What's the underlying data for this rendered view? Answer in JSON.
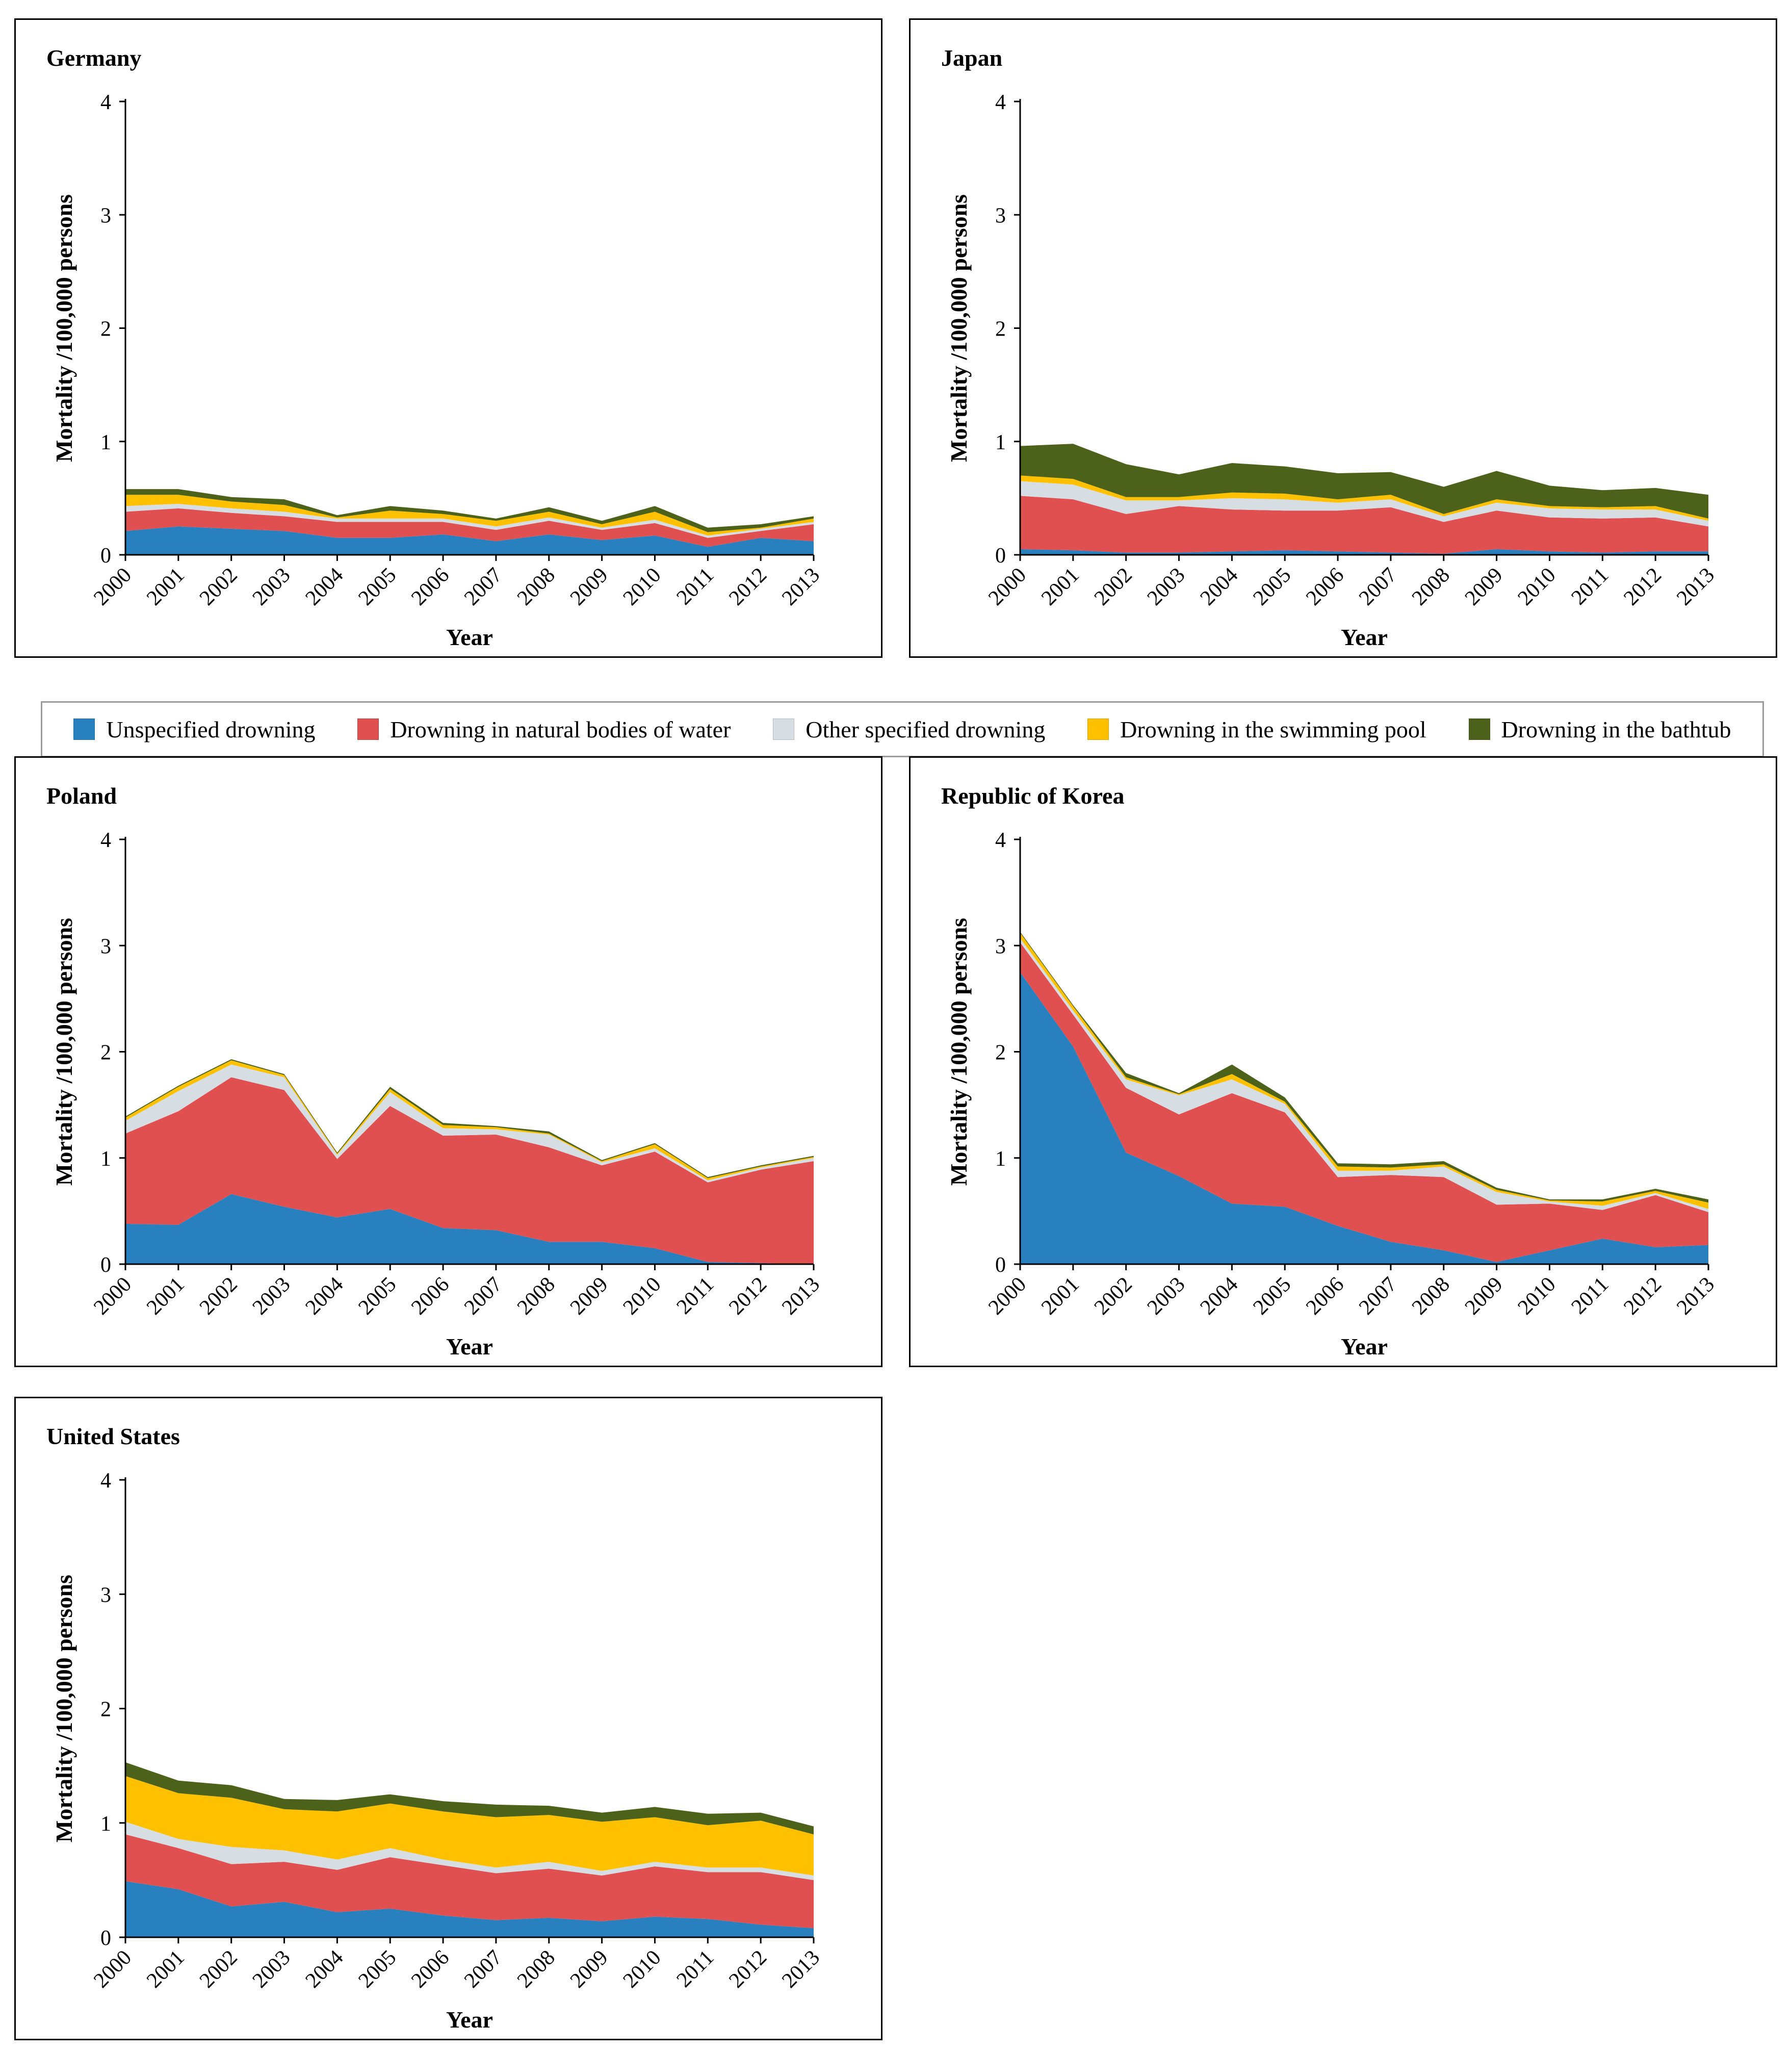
{
  "legend": {
    "items": [
      {
        "label": "Unspecified drowning",
        "color": "#2980bf"
      },
      {
        "label": "Drowning in natural bodies of water",
        "color": "#e05050"
      },
      {
        "label": "Other specified drowning",
        "color": "#d6dde3"
      },
      {
        "label": "Drowning in the swimming pool",
        "color": "#ffc000"
      },
      {
        "label": "Drowning in the bathtub",
        "color": "#4c6119"
      }
    ]
  },
  "chart_data": [
    {
      "type": "area",
      "title": "Germany",
      "xlabel": "Year",
      "ylabel": "Mortality /100,000 persons",
      "ylim": [
        0,
        4
      ],
      "yticks": [
        0,
        1,
        2,
        3,
        4
      ],
      "categories": [
        "2000",
        "2001",
        "2002",
        "2003",
        "2004",
        "2005",
        "2006",
        "2007",
        "2008",
        "2009",
        "2010",
        "2011",
        "2012",
        "2013"
      ],
      "series": [
        {
          "name": "Unspecified drowning",
          "values": [
            0.21,
            0.25,
            0.23,
            0.21,
            0.15,
            0.15,
            0.18,
            0.12,
            0.18,
            0.13,
            0.17,
            0.07,
            0.15,
            0.12
          ]
        },
        {
          "name": "Drowning in natural bodies of water",
          "values": [
            0.17,
            0.16,
            0.14,
            0.13,
            0.14,
            0.14,
            0.11,
            0.1,
            0.12,
            0.09,
            0.11,
            0.08,
            0.06,
            0.15
          ]
        },
        {
          "name": "Other specified drowning",
          "values": [
            0.05,
            0.04,
            0.04,
            0.04,
            0.03,
            0.03,
            0.03,
            0.03,
            0.03,
            0.02,
            0.03,
            0.02,
            0.02,
            0.02
          ]
        },
        {
          "name": "Drowning in the swimming pool",
          "values": [
            0.1,
            0.08,
            0.06,
            0.06,
            0.01,
            0.07,
            0.04,
            0.05,
            0.05,
            0.03,
            0.07,
            0.03,
            0.01,
            0.03
          ]
        },
        {
          "name": "Drowning in the bathtub",
          "values": [
            0.05,
            0.05,
            0.04,
            0.05,
            0.02,
            0.04,
            0.03,
            0.02,
            0.04,
            0.03,
            0.05,
            0.04,
            0.03,
            0.02
          ]
        }
      ]
    },
    {
      "type": "area",
      "title": "Japan",
      "xlabel": "Year",
      "ylabel": "Mortality /100,000 persons",
      "ylim": [
        0,
        4
      ],
      "yticks": [
        0,
        1,
        2,
        3,
        4
      ],
      "categories": [
        "2000",
        "2001",
        "2002",
        "2003",
        "2004",
        "2005",
        "2006",
        "2007",
        "2008",
        "2009",
        "2010",
        "2011",
        "2012",
        "2013"
      ],
      "series": [
        {
          "name": "Unspecified drowning",
          "values": [
            0.05,
            0.04,
            0.02,
            0.02,
            0.03,
            0.04,
            0.03,
            0.02,
            0.01,
            0.05,
            0.03,
            0.02,
            0.03,
            0.03
          ]
        },
        {
          "name": "Drowning in natural bodies of water",
          "values": [
            0.47,
            0.45,
            0.34,
            0.41,
            0.37,
            0.35,
            0.36,
            0.4,
            0.28,
            0.34,
            0.3,
            0.3,
            0.3,
            0.22
          ]
        },
        {
          "name": "Other specified drowning",
          "values": [
            0.13,
            0.13,
            0.12,
            0.05,
            0.1,
            0.1,
            0.07,
            0.07,
            0.05,
            0.07,
            0.08,
            0.08,
            0.07,
            0.05
          ]
        },
        {
          "name": "Drowning in the swimming pool",
          "values": [
            0.05,
            0.05,
            0.03,
            0.03,
            0.05,
            0.05,
            0.03,
            0.04,
            0.02,
            0.03,
            0.02,
            0.02,
            0.03,
            0.02
          ]
        },
        {
          "name": "Drowning in the bathtub",
          "values": [
            0.26,
            0.31,
            0.29,
            0.2,
            0.26,
            0.24,
            0.23,
            0.2,
            0.24,
            0.25,
            0.18,
            0.15,
            0.16,
            0.21
          ]
        }
      ]
    },
    {
      "type": "area",
      "title": "Poland",
      "xlabel": "Year",
      "ylabel": "Mortality /100,000 persons",
      "ylim": [
        0,
        4
      ],
      "yticks": [
        0,
        1,
        2,
        3,
        4
      ],
      "categories": [
        "2000",
        "2001",
        "2002",
        "2003",
        "2004",
        "2005",
        "2006",
        "2007",
        "2008",
        "2009",
        "2010",
        "2011",
        "2012",
        "2013"
      ],
      "series": [
        {
          "name": "Unspecified drowning",
          "values": [
            0.38,
            0.37,
            0.66,
            0.54,
            0.44,
            0.52,
            0.34,
            0.32,
            0.21,
            0.21,
            0.15,
            0.02,
            0.01,
            0.0
          ]
        },
        {
          "name": "Drowning in natural bodies of water",
          "values": [
            0.85,
            1.07,
            1.1,
            1.1,
            0.55,
            0.97,
            0.87,
            0.9,
            0.89,
            0.72,
            0.91,
            0.75,
            0.88,
            0.97
          ]
        },
        {
          "name": "Other specified drowning",
          "values": [
            0.12,
            0.19,
            0.12,
            0.12,
            0.04,
            0.13,
            0.07,
            0.05,
            0.12,
            0.03,
            0.03,
            0.02,
            0.02,
            0.03
          ]
        },
        {
          "name": "Drowning in the swimming pool",
          "values": [
            0.03,
            0.04,
            0.04,
            0.02,
            0.01,
            0.03,
            0.03,
            0.02,
            0.01,
            0.01,
            0.04,
            0.02,
            0.01,
            0.01
          ]
        },
        {
          "name": "Drowning in the bathtub",
          "values": [
            0.01,
            0.01,
            0.01,
            0.01,
            0.01,
            0.02,
            0.02,
            0.01,
            0.02,
            0.01,
            0.01,
            0.01,
            0.01,
            0.01
          ]
        }
      ]
    },
    {
      "type": "area",
      "title": "Republic of Korea",
      "xlabel": "Year",
      "ylabel": "Mortality /100,000 persons",
      "ylim": [
        0,
        4
      ],
      "yticks": [
        0,
        1,
        2,
        3,
        4
      ],
      "categories": [
        "2000",
        "2001",
        "2002",
        "2003",
        "2004",
        "2005",
        "2006",
        "2007",
        "2008",
        "2009",
        "2010",
        "2011",
        "2012",
        "2013"
      ],
      "series": [
        {
          "name": "Unspecified drowning",
          "values": [
            2.75,
            2.05,
            1.05,
            0.83,
            0.57,
            0.54,
            0.36,
            0.21,
            0.13,
            0.02,
            0.13,
            0.24,
            0.16,
            0.18
          ]
        },
        {
          "name": "Drowning in natural bodies of water",
          "values": [
            0.28,
            0.3,
            0.61,
            0.58,
            1.04,
            0.89,
            0.46,
            0.63,
            0.69,
            0.54,
            0.44,
            0.27,
            0.49,
            0.31
          ]
        },
        {
          "name": "Other specified drowning",
          "values": [
            0.04,
            0.04,
            0.08,
            0.18,
            0.13,
            0.08,
            0.06,
            0.04,
            0.1,
            0.12,
            0.02,
            0.04,
            0.02,
            0.03
          ]
        },
        {
          "name": "Drowning in the swimming pool",
          "values": [
            0.05,
            0.04,
            0.02,
            0.01,
            0.05,
            0.02,
            0.04,
            0.03,
            0.02,
            0.02,
            0.01,
            0.04,
            0.02,
            0.06
          ]
        },
        {
          "name": "Drowning in the bathtub",
          "values": [
            0.01,
            0.01,
            0.04,
            0.01,
            0.09,
            0.04,
            0.03,
            0.03,
            0.03,
            0.02,
            0.01,
            0.02,
            0.02,
            0.03
          ]
        }
      ]
    },
    {
      "type": "area",
      "title": "United States",
      "xlabel": "Year",
      "ylabel": "Mortality /100,000 persons",
      "ylim": [
        0,
        4
      ],
      "yticks": [
        0,
        1,
        2,
        3,
        4
      ],
      "categories": [
        "2000",
        "2001",
        "2002",
        "2003",
        "2004",
        "2005",
        "2006",
        "2007",
        "2008",
        "2009",
        "2010",
        "2011",
        "2012",
        "2013"
      ],
      "series": [
        {
          "name": "Unspecified drowning",
          "values": [
            0.49,
            0.42,
            0.27,
            0.31,
            0.22,
            0.25,
            0.19,
            0.15,
            0.17,
            0.14,
            0.18,
            0.16,
            0.11,
            0.08
          ]
        },
        {
          "name": "Drowning in natural bodies of water",
          "values": [
            0.41,
            0.36,
            0.37,
            0.35,
            0.37,
            0.45,
            0.44,
            0.41,
            0.43,
            0.4,
            0.44,
            0.41,
            0.46,
            0.42
          ]
        },
        {
          "name": "Other specified drowning",
          "values": [
            0.11,
            0.08,
            0.15,
            0.1,
            0.09,
            0.08,
            0.05,
            0.05,
            0.06,
            0.04,
            0.04,
            0.04,
            0.04,
            0.04
          ]
        },
        {
          "name": "Drowning in the swimming pool",
          "values": [
            0.4,
            0.4,
            0.43,
            0.36,
            0.42,
            0.39,
            0.42,
            0.44,
            0.41,
            0.43,
            0.39,
            0.37,
            0.41,
            0.36
          ]
        },
        {
          "name": "Drowning in the bathtub",
          "values": [
            0.12,
            0.11,
            0.11,
            0.09,
            0.1,
            0.08,
            0.09,
            0.11,
            0.08,
            0.08,
            0.09,
            0.1,
            0.07,
            0.07
          ]
        }
      ]
    }
  ]
}
